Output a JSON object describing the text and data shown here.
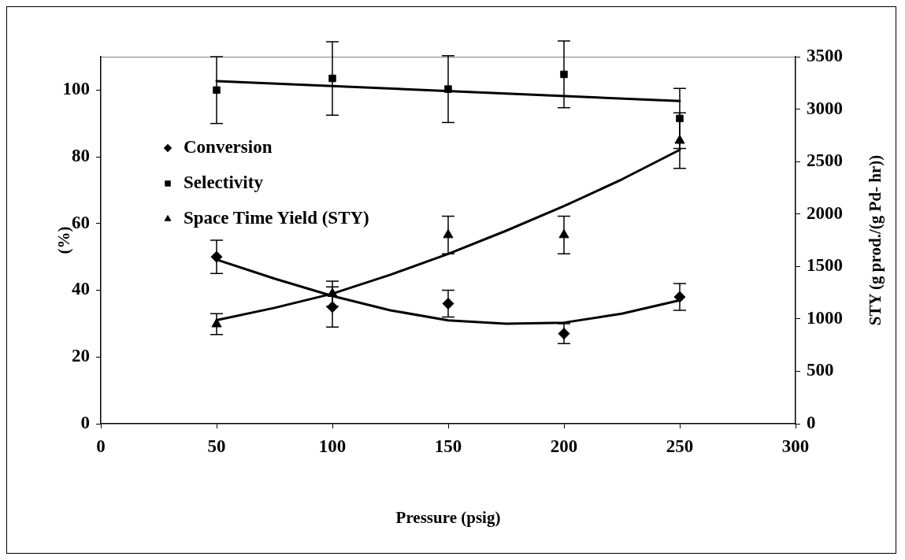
{
  "chart_data": {
    "type": "scatter",
    "xlabel": "Pressure (psig)",
    "ylabel": "(%)",
    "y2label": "STY (g prod./(g Pd- hr))",
    "x": [
      50,
      100,
      150,
      200,
      250
    ],
    "series": [
      {
        "name": "Conversion",
        "color": "#000000",
        "marker": "diamond",
        "values": [
          50,
          35,
          36,
          27,
          38
        ],
        "errors": [
          5,
          6,
          4,
          3,
          4
        ]
      },
      {
        "name": "Selectivity",
        "color": "#000000",
        "marker": "square",
        "values": [
          100,
          103.5,
          100.3,
          104.7,
          91.5
        ],
        "errors": [
          10,
          11,
          10,
          10,
          9
        ]
      },
      {
        "name": "Space Time Yield (STY)",
        "color": "#000000",
        "marker": "triangle",
        "axis": "y2",
        "values": [
          950,
          1240,
          1800,
          1800,
          2700
        ],
        "errors": [
          100,
          120,
          180,
          180,
          265
        ]
      },
      {
        "type": "line",
        "color": "#000000",
        "marker": "none",
        "x": [
          50,
          75,
          100,
          125,
          150,
          175,
          200,
          225,
          250
        ],
        "values": [
          49.2,
          43.5,
          38.3,
          34,
          31,
          30,
          30.3,
          33,
          37
        ]
      },
      {
        "type": "line",
        "color": "#000000",
        "marker": "none",
        "x": [
          50,
          250
        ],
        "values": [
          102.7,
          96.7
        ]
      },
      {
        "type": "line",
        "color": "#000000",
        "marker": "none",
        "axis": "y2",
        "x": [
          50,
          75,
          100,
          125,
          150,
          175,
          200,
          225,
          250
        ],
        "values": [
          987,
          1105,
          1240,
          1420,
          1619,
          1840,
          2075,
          2330,
          2612
        ]
      }
    ],
    "xlim": [
      0,
      300
    ],
    "xticks": [
      0,
      50,
      100,
      150,
      200,
      250,
      300
    ],
    "ylim": [
      0,
      110
    ],
    "yticks": [
      0,
      20,
      40,
      60,
      80,
      100
    ],
    "y2lim": [
      0,
      3500
    ],
    "y2ticks": [
      0,
      500,
      1000,
      1500,
      2000,
      2500,
      3000,
      3500
    ],
    "grid": false,
    "legend": "top left"
  }
}
